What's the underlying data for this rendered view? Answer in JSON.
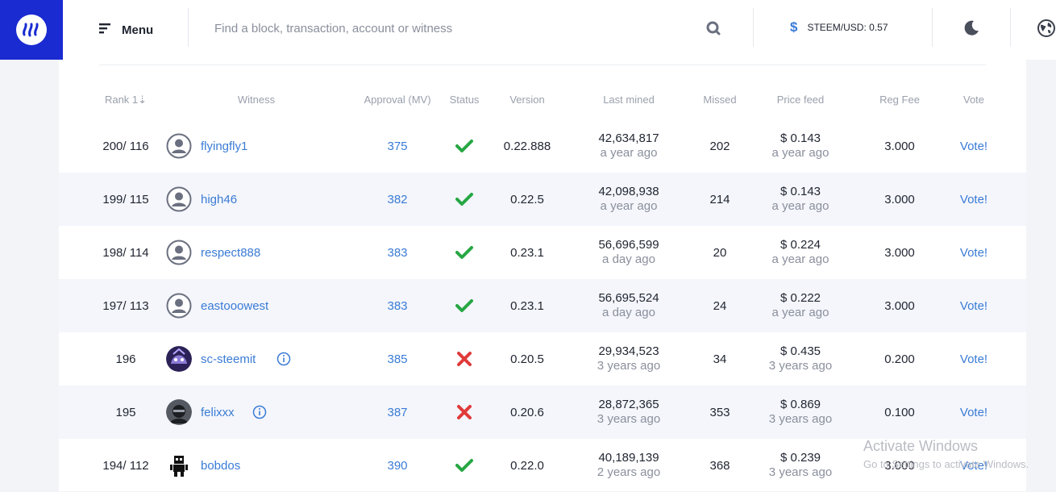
{
  "header": {
    "menu_label": "Menu",
    "search_placeholder": "Find a block, transaction, account or witness",
    "price_symbol": "$",
    "price_text": "STEEM/USD: 0.57"
  },
  "table": {
    "columns": [
      "Rank 1⇣",
      "Witness",
      "Approval (MV)",
      "Status",
      "Version",
      "Last mined",
      "Missed",
      "Price feed",
      "Reg Fee",
      "Vote"
    ],
    "rows": [
      {
        "rank": "200/ 116",
        "witness": "flyingfly1",
        "approval": "375",
        "status": "check",
        "version": "0.22.888",
        "last_block": "42,634,817",
        "last_time": "a year ago",
        "missed": "202",
        "price": "$ 0.143",
        "price_time": "a year ago",
        "fee": "3.000",
        "vote": "Vote!"
      },
      {
        "rank": "199/ 115",
        "witness": "high46",
        "approval": "382",
        "status": "check",
        "version": "0.22.5",
        "last_block": "42,098,938",
        "last_time": "a year ago",
        "missed": "214",
        "price": "$ 0.143",
        "price_time": "a year ago",
        "fee": "3.000",
        "vote": "Vote!"
      },
      {
        "rank": "198/ 114",
        "witness": "respect888",
        "approval": "383",
        "status": "check",
        "version": "0.23.1",
        "last_block": "56,696,599",
        "last_time": "a day ago",
        "missed": "20",
        "price": "$ 0.224",
        "price_time": "a year ago",
        "fee": "3.000",
        "vote": "Vote!"
      },
      {
        "rank": "197/ 113",
        "witness": "eastooowest",
        "approval": "383",
        "status": "check",
        "version": "0.23.1",
        "last_block": "56,695,524",
        "last_time": "a day ago",
        "missed": "24",
        "price": "$ 0.222",
        "price_time": "a year ago",
        "fee": "3.000",
        "vote": "Vote!"
      },
      {
        "rank": "196",
        "witness": "sc-steemit",
        "approval": "385",
        "status": "cross",
        "version": "0.20.5",
        "last_block": "29,934,523",
        "last_time": "3 years ago",
        "missed": "34",
        "price": "$ 0.435",
        "price_time": "3 years ago",
        "fee": "0.200",
        "vote": "Vote!"
      },
      {
        "rank": "195",
        "witness": "felixxx",
        "approval": "387",
        "status": "cross",
        "version": "0.20.6",
        "last_block": "28,872,365",
        "last_time": "3 years ago",
        "missed": "353",
        "price": "$ 0.869",
        "price_time": "3 years ago",
        "fee": "0.100",
        "vote": "Vote!"
      },
      {
        "rank": "194/ 112",
        "witness": "bobdos",
        "approval": "390",
        "status": "check",
        "version": "0.22.0",
        "last_block": "40,189,139",
        "last_time": "2 years ago",
        "missed": "368",
        "price": "$ 0.239",
        "price_time": "3 years ago",
        "fee": "3.000",
        "vote": "Vote!"
      }
    ]
  },
  "watermark": {
    "line1": "Activate Windows",
    "line2": "Go to Settings to activate Windows."
  },
  "colors": {
    "accent": "#3a7bd5",
    "brand": "#1a2bd1",
    "ok": "#27a744",
    "bad": "#e03a3a"
  }
}
